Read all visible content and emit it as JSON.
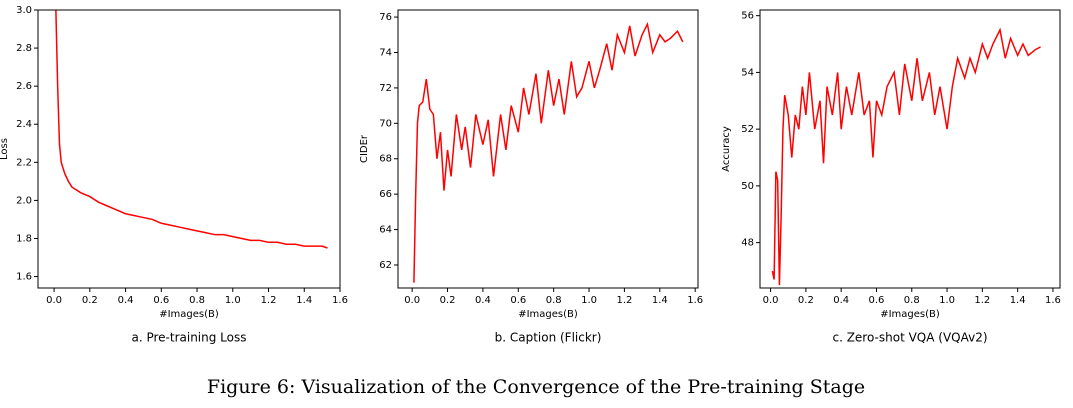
{
  "chart_data": [
    {
      "type": "line",
      "caption": "a. Pre-training Loss",
      "x_label": "#Images(B)",
      "y_label": "Loss",
      "x": [
        0.01,
        0.02,
        0.03,
        0.04,
        0.06,
        0.08,
        0.1,
        0.15,
        0.2,
        0.25,
        0.3,
        0.35,
        0.4,
        0.45,
        0.5,
        0.55,
        0.6,
        0.65,
        0.7,
        0.75,
        0.8,
        0.85,
        0.9,
        0.95,
        1.0,
        1.05,
        1.1,
        1.15,
        1.2,
        1.25,
        1.3,
        1.35,
        1.4,
        1.45,
        1.5,
        1.53
      ],
      "series": [
        {
          "name": "Loss",
          "color": "#ff0000",
          "values": [
            3.0,
            2.6,
            2.3,
            2.2,
            2.14,
            2.1,
            2.07,
            2.04,
            2.02,
            1.99,
            1.97,
            1.95,
            1.93,
            1.92,
            1.91,
            1.9,
            1.88,
            1.87,
            1.86,
            1.85,
            1.84,
            1.83,
            1.82,
            1.82,
            1.81,
            1.8,
            1.79,
            1.79,
            1.78,
            1.78,
            1.77,
            1.77,
            1.76,
            1.76,
            1.76,
            1.75
          ]
        }
      ],
      "xlim": [
        -0.09,
        1.6
      ],
      "ylim": [
        1.54,
        3.0
      ],
      "xticks": [
        {
          "value": 0,
          "label": "0.0"
        },
        0.2,
        0.4,
        0.6,
        0.8,
        {
          "value": 1,
          "label": "1.0"
        },
        1.2,
        1.4,
        1.6
      ],
      "yticks": [
        1.6,
        1.8,
        {
          "value": 2,
          "label": "2.0"
        },
        2.2,
        2.4,
        2.6,
        2.8,
        {
          "value": 3,
          "label": "3.0"
        }
      ]
    },
    {
      "type": "line",
      "caption": "b. Caption (Flickr)",
      "x_label": "#Images(B)",
      "y_label": "CIDEr",
      "x": [
        0.01,
        0.02,
        0.03,
        0.04,
        0.06,
        0.08,
        0.1,
        0.12,
        0.14,
        0.16,
        0.18,
        0.2,
        0.22,
        0.25,
        0.28,
        0.3,
        0.33,
        0.36,
        0.4,
        0.43,
        0.46,
        0.5,
        0.53,
        0.56,
        0.6,
        0.63,
        0.66,
        0.7,
        0.73,
        0.77,
        0.8,
        0.83,
        0.86,
        0.9,
        0.93,
        0.96,
        1.0,
        1.03,
        1.06,
        1.1,
        1.13,
        1.16,
        1.2,
        1.23,
        1.26,
        1.3,
        1.33,
        1.36,
        1.4,
        1.43,
        1.46,
        1.5,
        1.53
      ],
      "series": [
        {
          "name": "CIDEr",
          "color": "#ff0000",
          "values": [
            61,
            66,
            70,
            71,
            71.2,
            72.5,
            70.8,
            70.5,
            68,
            69.5,
            66.2,
            68.5,
            67,
            70.5,
            68.5,
            69.8,
            67.5,
            70.5,
            68.8,
            70.2,
            67,
            70.5,
            68.5,
            71,
            69.5,
            72,
            70.5,
            72.8,
            70,
            73,
            71,
            72.5,
            70.5,
            73.5,
            71.5,
            72,
            73.5,
            72,
            73,
            74.5,
            73,
            75,
            74,
            75.5,
            73.8,
            75,
            75.6,
            74,
            75,
            74.6,
            74.8,
            75.2,
            74.6
          ]
        }
      ],
      "xlim": [
        -0.08,
        1.616
      ],
      "ylim": [
        60.7,
        76.4
      ],
      "xticks": [
        {
          "value": 0,
          "label": "0.0"
        },
        0.2,
        0.4,
        0.6,
        0.8,
        {
          "value": 1,
          "label": "1.0"
        },
        1.2,
        1.4,
        1.6
      ],
      "yticks": [
        62,
        64,
        66,
        68,
        70,
        72,
        74,
        76
      ]
    },
    {
      "type": "line",
      "caption": "c. Zero-shot VQA (VQAv2)",
      "x_label": "#Images(B)",
      "y_label": "Accuracy",
      "x": [
        0.01,
        0.02,
        0.03,
        0.04,
        0.05,
        0.06,
        0.07,
        0.08,
        0.1,
        0.12,
        0.14,
        0.16,
        0.18,
        0.2,
        0.22,
        0.25,
        0.28,
        0.3,
        0.32,
        0.35,
        0.38,
        0.4,
        0.43,
        0.46,
        0.5,
        0.53,
        0.56,
        0.58,
        0.6,
        0.63,
        0.66,
        0.7,
        0.73,
        0.76,
        0.8,
        0.83,
        0.86,
        0.9,
        0.93,
        0.96,
        1.0,
        1.03,
        1.06,
        1.1,
        1.13,
        1.16,
        1.2,
        1.23,
        1.26,
        1.3,
        1.33,
        1.36,
        1.4,
        1.43,
        1.46,
        1.5,
        1.53
      ],
      "series": [
        {
          "name": "Accuracy",
          "color": "#ff0000",
          "values": [
            47,
            46.7,
            50.5,
            50.2,
            46.5,
            49,
            52,
            53.2,
            52.5,
            51,
            52.5,
            52,
            53.5,
            52.5,
            54,
            52,
            53,
            50.8,
            53.5,
            52.5,
            54,
            52,
            53.5,
            52.5,
            54,
            52.5,
            53,
            51,
            53,
            52.5,
            53.5,
            54,
            52.5,
            54.3,
            53,
            54.5,
            53,
            54,
            52.5,
            53.5,
            52,
            53.5,
            54.5,
            53.8,
            54.5,
            54,
            55,
            54.5,
            55,
            55.5,
            54.5,
            55.2,
            54.6,
            55,
            54.6,
            54.8,
            54.9
          ]
        }
      ],
      "xlim": [
        -0.06,
        1.64
      ],
      "ylim": [
        46.4,
        56.2
      ],
      "xticks": [
        {
          "value": 0,
          "label": "0.0"
        },
        0.2,
        0.4,
        0.6,
        0.8,
        {
          "value": 1,
          "label": "1.0"
        },
        1.2,
        1.4,
        1.6
      ],
      "yticks": [
        48,
        50,
        52,
        54,
        56
      ]
    }
  ],
  "figure_caption": "Figure 6: Visualization of the Convergence of the Pre-training Stage"
}
